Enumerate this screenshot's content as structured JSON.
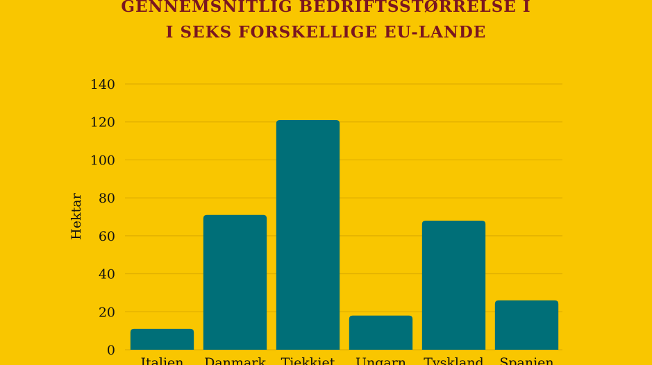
{
  "chart_data": {
    "type": "bar",
    "title_lines": [
      "GENNEMSNITLIG BEDRIFTSSTØRRELSE I",
      "I SEKS FORSKELLIGE EU-LANDE"
    ],
    "xlabel": "",
    "ylabel": "Hektar",
    "categories": [
      "Italien",
      "Danmark",
      "Tjekkiet",
      "Ungarn",
      "Tyskland",
      "Spanien"
    ],
    "values": [
      11,
      71,
      121,
      18,
      68,
      26
    ],
    "ylim": [
      0,
      140
    ],
    "yticks": [
      0,
      20,
      40,
      60,
      80,
      100,
      120,
      140
    ],
    "grid": true,
    "colors": {
      "background": "#f9c600",
      "bar": "#006f78",
      "title": "#7a1620",
      "grid": "#d9a800"
    }
  }
}
